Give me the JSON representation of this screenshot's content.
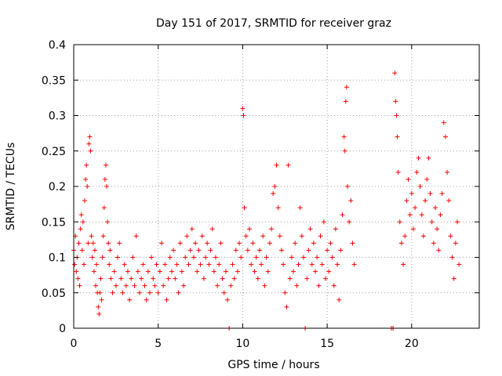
{
  "chart_data": {
    "type": "scatter",
    "title": "Day 151 of 2017, SRMTID for receiver graz",
    "xlabel": "GPS time / hours",
    "ylabel": "SRMTID / TECUs",
    "xlim": [
      0,
      24
    ],
    "ylim": [
      0,
      0.4
    ],
    "x_ticks": [
      0,
      5,
      10,
      15,
      20
    ],
    "x_tick_labels": [
      "0",
      "5",
      "10",
      "15",
      "20"
    ],
    "y_ticks": [
      0,
      0.05,
      0.1,
      0.15,
      0.2,
      0.25,
      0.3,
      0.35,
      0.4
    ],
    "y_tick_labels": [
      "0",
      "0.05",
      "0.1",
      "0.15",
      "0.2",
      "0.25",
      "0.3",
      "0.35",
      "0.4"
    ],
    "grid": true,
    "marker": "+",
    "color": "#ff0000",
    "series": [
      {
        "name": "SRMTID",
        "points": [
          [
            0.0,
            0.11
          ],
          [
            0.05,
            0.09
          ],
          [
            0.1,
            0.13
          ],
          [
            0.15,
            0.08
          ],
          [
            0.2,
            0.1
          ],
          [
            0.25,
            0.07
          ],
          [
            0.3,
            0.12
          ],
          [
            0.35,
            0.06
          ],
          [
            0.4,
            0.14
          ],
          [
            0.45,
            0.16
          ],
          [
            0.5,
            0.11
          ],
          [
            0.55,
            0.15
          ],
          [
            0.6,
            0.09
          ],
          [
            0.65,
            0.18
          ],
          [
            0.7,
            0.21
          ],
          [
            0.75,
            0.23
          ],
          [
            0.8,
            0.2
          ],
          [
            0.85,
            0.12
          ],
          [
            0.9,
            0.26
          ],
          [
            0.95,
            0.27
          ],
          [
            1.0,
            0.25
          ],
          [
            1.05,
            0.13
          ],
          [
            1.1,
            0.1
          ],
          [
            1.15,
            0.12
          ],
          [
            1.2,
            0.08
          ],
          [
            1.25,
            0.11
          ],
          [
            1.3,
            0.06
          ],
          [
            1.35,
            0.09
          ],
          [
            1.4,
            0.05
          ],
          [
            1.45,
            0.03
          ],
          [
            1.5,
            0.02
          ],
          [
            1.55,
            0.05
          ],
          [
            1.6,
            0.07
          ],
          [
            1.65,
            0.04
          ],
          [
            1.7,
            0.1
          ],
          [
            1.75,
            0.13
          ],
          [
            1.8,
            0.17
          ],
          [
            1.85,
            0.21
          ],
          [
            1.9,
            0.23
          ],
          [
            1.95,
            0.2
          ],
          [
            2.0,
            0.15
          ],
          [
            2.05,
            0.12
          ],
          [
            2.1,
            0.09
          ],
          [
            2.15,
            0.11
          ],
          [
            2.2,
            0.07
          ],
          [
            2.3,
            0.05
          ],
          [
            2.4,
            0.08
          ],
          [
            2.5,
            0.06
          ],
          [
            2.6,
            0.1
          ],
          [
            2.7,
            0.12
          ],
          [
            2.8,
            0.07
          ],
          [
            2.9,
            0.05
          ],
          [
            3.0,
            0.09
          ],
          [
            3.1,
            0.06
          ],
          [
            3.2,
            0.08
          ],
          [
            3.3,
            0.04
          ],
          [
            3.4,
            0.07
          ],
          [
            3.5,
            0.1
          ],
          [
            3.6,
            0.06
          ],
          [
            3.7,
            0.13
          ],
          [
            3.8,
            0.08
          ],
          [
            3.9,
            0.05
          ],
          [
            4.0,
            0.07
          ],
          [
            4.1,
            0.09
          ],
          [
            4.2,
            0.06
          ],
          [
            4.3,
            0.04
          ],
          [
            4.4,
            0.08
          ],
          [
            4.5,
            0.05
          ],
          [
            4.6,
            0.1
          ],
          [
            4.7,
            0.07
          ],
          [
            4.8,
            0.06
          ],
          [
            4.9,
            0.09
          ],
          [
            5.0,
            0.05
          ],
          [
            5.1,
            0.08
          ],
          [
            5.2,
            0.12
          ],
          [
            5.3,
            0.06
          ],
          [
            5.4,
            0.09
          ],
          [
            5.5,
            0.04
          ],
          [
            5.6,
            0.07
          ],
          [
            5.7,
            0.1
          ],
          [
            5.8,
            0.08
          ],
          [
            5.9,
            0.11
          ],
          [
            6.0,
            0.07
          ],
          [
            6.1,
            0.09
          ],
          [
            6.2,
            0.05
          ],
          [
            6.3,
            0.12
          ],
          [
            6.4,
            0.08
          ],
          [
            6.5,
            0.06
          ],
          [
            6.6,
            0.1
          ],
          [
            6.7,
            0.13
          ],
          [
            6.8,
            0.09
          ],
          [
            6.9,
            0.11
          ],
          [
            7.0,
            0.14
          ],
          [
            7.1,
            0.1
          ],
          [
            7.2,
            0.12
          ],
          [
            7.3,
            0.08
          ],
          [
            7.4,
            0.11
          ],
          [
            7.5,
            0.09
          ],
          [
            7.6,
            0.13
          ],
          [
            7.7,
            0.07
          ],
          [
            7.8,
            0.1
          ],
          [
            7.9,
            0.12
          ],
          [
            8.0,
            0.09
          ],
          [
            8.1,
            0.11
          ],
          [
            8.2,
            0.14
          ],
          [
            8.3,
            0.08
          ],
          [
            8.4,
            0.1
          ],
          [
            8.5,
            0.06
          ],
          [
            8.6,
            0.09
          ],
          [
            8.7,
            0.12
          ],
          [
            8.8,
            0.07
          ],
          [
            8.9,
            0.05
          ],
          [
            9.0,
            0.08
          ],
          [
            9.1,
            0.04
          ],
          [
            9.2,
            0.0
          ],
          [
            9.3,
            0.06
          ],
          [
            9.4,
            0.09
          ],
          [
            9.5,
            0.07
          ],
          [
            9.6,
            0.11
          ],
          [
            9.7,
            0.08
          ],
          [
            9.8,
            0.12
          ],
          [
            9.9,
            0.1
          ],
          [
            10.0,
            0.31
          ],
          [
            10.05,
            0.3
          ],
          [
            10.1,
            0.17
          ],
          [
            10.2,
            0.13
          ],
          [
            10.3,
            0.11
          ],
          [
            10.4,
            0.14
          ],
          [
            10.5,
            0.09
          ],
          [
            10.6,
            0.12
          ],
          [
            10.7,
            0.08
          ],
          [
            10.8,
            0.1
          ],
          [
            10.9,
            0.07
          ],
          [
            11.0,
            0.11
          ],
          [
            11.1,
            0.09
          ],
          [
            11.2,
            0.13
          ],
          [
            11.3,
            0.06
          ],
          [
            11.4,
            0.1
          ],
          [
            11.5,
            0.08
          ],
          [
            11.6,
            0.12
          ],
          [
            11.7,
            0.14
          ],
          [
            11.8,
            0.19
          ],
          [
            11.9,
            0.2
          ],
          [
            12.0,
            0.23
          ],
          [
            12.1,
            0.17
          ],
          [
            12.2,
            0.13
          ],
          [
            12.3,
            0.11
          ],
          [
            12.4,
            0.09
          ],
          [
            12.5,
            0.05
          ],
          [
            12.6,
            0.03
          ],
          [
            12.7,
            0.23
          ],
          [
            12.8,
            0.07
          ],
          [
            12.9,
            0.1
          ],
          [
            13.0,
            0.08
          ],
          [
            13.1,
            0.12
          ],
          [
            13.2,
            0.06
          ],
          [
            13.3,
            0.09
          ],
          [
            13.4,
            0.17
          ],
          [
            13.5,
            0.13
          ],
          [
            13.6,
            0.1
          ],
          [
            13.7,
            0.0
          ],
          [
            13.8,
            0.07
          ],
          [
            13.9,
            0.11
          ],
          [
            14.0,
            0.14
          ],
          [
            14.1,
            0.09
          ],
          [
            14.2,
            0.12
          ],
          [
            14.3,
            0.08
          ],
          [
            14.4,
            0.1
          ],
          [
            14.5,
            0.06
          ],
          [
            14.6,
            0.13
          ],
          [
            14.7,
            0.09
          ],
          [
            14.8,
            0.15
          ],
          [
            14.9,
            0.07
          ],
          [
            15.0,
            0.11
          ],
          [
            15.1,
            0.08
          ],
          [
            15.2,
            0.12
          ],
          [
            15.3,
            0.1
          ],
          [
            15.4,
            0.06
          ],
          [
            15.5,
            0.14
          ],
          [
            15.6,
            0.09
          ],
          [
            15.7,
            0.04
          ],
          [
            15.8,
            0.11
          ],
          [
            15.9,
            0.16
          ],
          [
            16.0,
            0.27
          ],
          [
            16.05,
            0.25
          ],
          [
            16.1,
            0.32
          ],
          [
            16.15,
            0.34
          ],
          [
            16.2,
            0.2
          ],
          [
            16.3,
            0.15
          ],
          [
            16.4,
            0.18
          ],
          [
            16.5,
            0.12
          ],
          [
            16.6,
            0.09
          ],
          [
            18.8,
            0.0
          ],
          [
            18.9,
            0.0
          ],
          [
            19.0,
            0.36
          ],
          [
            19.05,
            0.32
          ],
          [
            19.1,
            0.3
          ],
          [
            19.15,
            0.27
          ],
          [
            19.2,
            0.22
          ],
          [
            19.3,
            0.15
          ],
          [
            19.4,
            0.12
          ],
          [
            19.5,
            0.09
          ],
          [
            19.6,
            0.13
          ],
          [
            19.7,
            0.18
          ],
          [
            19.8,
            0.21
          ],
          [
            19.9,
            0.16
          ],
          [
            20.0,
            0.19
          ],
          [
            20.1,
            0.14
          ],
          [
            20.2,
            0.17
          ],
          [
            20.3,
            0.22
          ],
          [
            20.4,
            0.24
          ],
          [
            20.5,
            0.2
          ],
          [
            20.6,
            0.16
          ],
          [
            20.7,
            0.13
          ],
          [
            20.8,
            0.18
          ],
          [
            20.9,
            0.21
          ],
          [
            21.0,
            0.24
          ],
          [
            21.1,
            0.19
          ],
          [
            21.2,
            0.15
          ],
          [
            21.3,
            0.12
          ],
          [
            21.4,
            0.17
          ],
          [
            21.5,
            0.14
          ],
          [
            21.6,
            0.11
          ],
          [
            21.7,
            0.16
          ],
          [
            21.8,
            0.19
          ],
          [
            21.9,
            0.29
          ],
          [
            22.0,
            0.27
          ],
          [
            22.1,
            0.22
          ],
          [
            22.2,
            0.18
          ],
          [
            22.3,
            0.13
          ],
          [
            22.4,
            0.1
          ],
          [
            22.5,
            0.07
          ],
          [
            22.6,
            0.12
          ],
          [
            22.7,
            0.15
          ],
          [
            22.8,
            0.09
          ]
        ]
      }
    ]
  }
}
